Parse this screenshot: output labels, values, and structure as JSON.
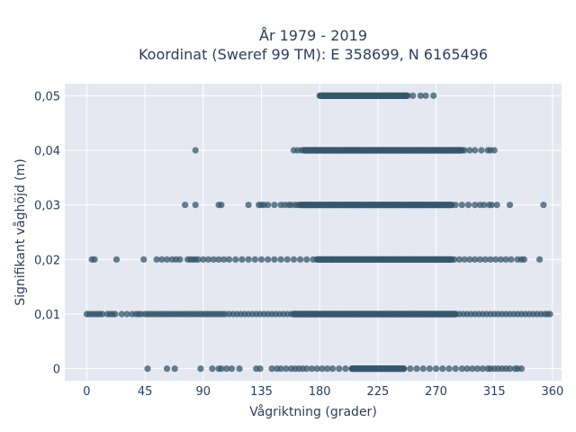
{
  "chart_data": {
    "type": "scatter",
    "title": [
      "År 1979 - 2019",
      "Koordinat (Sweref 99 TM): E 358699, N 6165496"
    ],
    "xlabel": "Vågriktning (grader)",
    "ylabel": "Signifikant våghöjd (m)",
    "xlim": [
      -17,
      367
    ],
    "ylim": [
      -0.0022,
      0.0522
    ],
    "xticks": [
      0,
      45,
      90,
      135,
      180,
      225,
      270,
      315,
      360
    ],
    "xtick_labels": [
      "0",
      "45",
      "90",
      "135",
      "180",
      "225",
      "270",
      "315",
      "360"
    ],
    "yticks": [
      0,
      0.01,
      0.02,
      0.03,
      0.04,
      0.05
    ],
    "ytick_labels": [
      "0",
      "0,01",
      "0,02",
      "0,03",
      "0,04",
      "0,05"
    ],
    "grid": true,
    "marker_color": "#34576e",
    "plot_background": "#e5e8f0",
    "series": [
      {
        "y": 0.05,
        "dense_range": [
          181,
          247
        ],
        "x": [
          180,
          182,
          186,
          190,
          195,
          200,
          205,
          210,
          215,
          220,
          225,
          230,
          235,
          240,
          245,
          248,
          252,
          258,
          262,
          268
        ]
      },
      {
        "y": 0.04,
        "dense_range": [
          168,
          290
        ],
        "x": [
          84,
          160,
          163,
          166,
          170,
          180,
          190,
          200,
          210,
          220,
          230,
          240,
          250,
          260,
          270,
          280,
          288,
          292,
          296,
          300,
          305,
          310,
          312,
          315
        ]
      },
      {
        "y": 0.03,
        "dense_range": [
          165,
          282
        ],
        "x": [
          76,
          84,
          102,
          104,
          125,
          133,
          135,
          137,
          140,
          145,
          150,
          153,
          156,
          158,
          161,
          163,
          170,
          180,
          190,
          200,
          210,
          220,
          230,
          240,
          250,
          260,
          270,
          280,
          285,
          290,
          295,
          300,
          304,
          307,
          311,
          313,
          317,
          327,
          353
        ]
      },
      {
        "y": 0.02,
        "dense_range": [
          178,
          282
        ],
        "x": [
          4,
          6,
          23,
          44,
          54,
          58,
          62,
          66,
          69,
          72,
          78,
          80,
          82,
          84,
          86,
          90,
          94,
          98,
          102,
          106,
          110,
          115,
          120,
          125,
          130,
          135,
          140,
          145,
          150,
          155,
          160,
          165,
          170,
          175,
          180,
          190,
          200,
          210,
          220,
          230,
          240,
          250,
          260,
          270,
          280,
          284,
          288,
          292,
          296,
          300,
          304,
          308,
          312,
          316,
          320,
          324,
          328,
          333,
          336,
          338,
          350
        ]
      },
      {
        "y": 0.01,
        "dense_range": [
          160,
          285
        ],
        "x": [
          0,
          2,
          4,
          6,
          8,
          10,
          12,
          16,
          18,
          20,
          22,
          27,
          31,
          35,
          38,
          40,
          42,
          45,
          47,
          49,
          51,
          53,
          55,
          57,
          59,
          61,
          63,
          65,
          67,
          69,
          71,
          73,
          75,
          77,
          79,
          81,
          83,
          85,
          87,
          89,
          91,
          93,
          95,
          97,
          99,
          101,
          103,
          105,
          107,
          110,
          113,
          116,
          119,
          122,
          125,
          128,
          131,
          134,
          137,
          140,
          143,
          146,
          149,
          152,
          155,
          158,
          160,
          170,
          180,
          190,
          200,
          210,
          220,
          230,
          240,
          250,
          260,
          270,
          280,
          285,
          288,
          291,
          294,
          297,
          300,
          303,
          306,
          309,
          312,
          315,
          318,
          321,
          324,
          327,
          330,
          333,
          336,
          339,
          342,
          345,
          348,
          351,
          354,
          356,
          358
        ]
      },
      {
        "y": 0,
        "dense_range": [
          205,
          245
        ],
        "x": [
          47,
          62,
          68,
          88,
          97,
          102,
          104,
          108,
          112,
          118,
          131,
          134,
          143,
          147,
          150,
          154,
          158,
          161,
          164,
          167,
          170,
          174,
          178,
          182,
          186,
          190,
          195,
          200,
          250,
          255,
          260,
          265,
          270,
          275,
          280,
          285,
          290,
          294,
          298,
          302,
          306,
          310,
          312,
          315,
          318,
          321,
          324,
          327,
          331,
          333,
          336
        ]
      }
    ]
  }
}
